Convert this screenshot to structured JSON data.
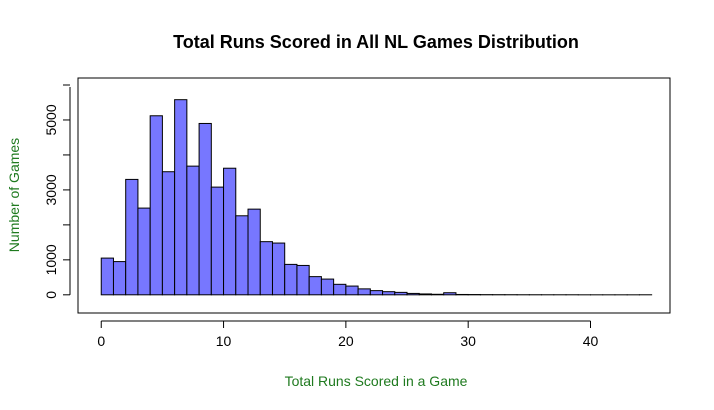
{
  "colors": {
    "bar_fill": "#7777ff",
    "bar_stroke": "#000000",
    "axis_label": "#1f7a1f"
  },
  "chart_data": {
    "type": "bar",
    "title": "Total Runs Scored in All NL Games Distribution",
    "xlabel": "Total Runs Scored in a Game",
    "ylabel": "Number of Games",
    "bin_width": 1,
    "bin_start": 0,
    "values": [
      1050,
      950,
      3300,
      2480,
      5120,
      3520,
      5580,
      3680,
      4900,
      3080,
      3620,
      2260,
      2450,
      1520,
      1480,
      870,
      840,
      520,
      450,
      300,
      250,
      170,
      120,
      90,
      70,
      40,
      25,
      15,
      60,
      10,
      8,
      5,
      4,
      3,
      2,
      2,
      1,
      1,
      1,
      0,
      0,
      0,
      0,
      0,
      1
    ],
    "xlim": [
      -1.9,
      46.5
    ],
    "ylim": [
      -520,
      6200
    ],
    "xticks": [
      0,
      10,
      20,
      30,
      40
    ],
    "yticks": [
      0,
      1000,
      3000,
      5000
    ],
    "xtick_labels": [
      "0",
      "10",
      "20",
      "30",
      "40"
    ],
    "ytick_labels": [
      "0",
      "1000",
      "3000",
      "5000"
    ],
    "grid": false,
    "legend": "none"
  }
}
